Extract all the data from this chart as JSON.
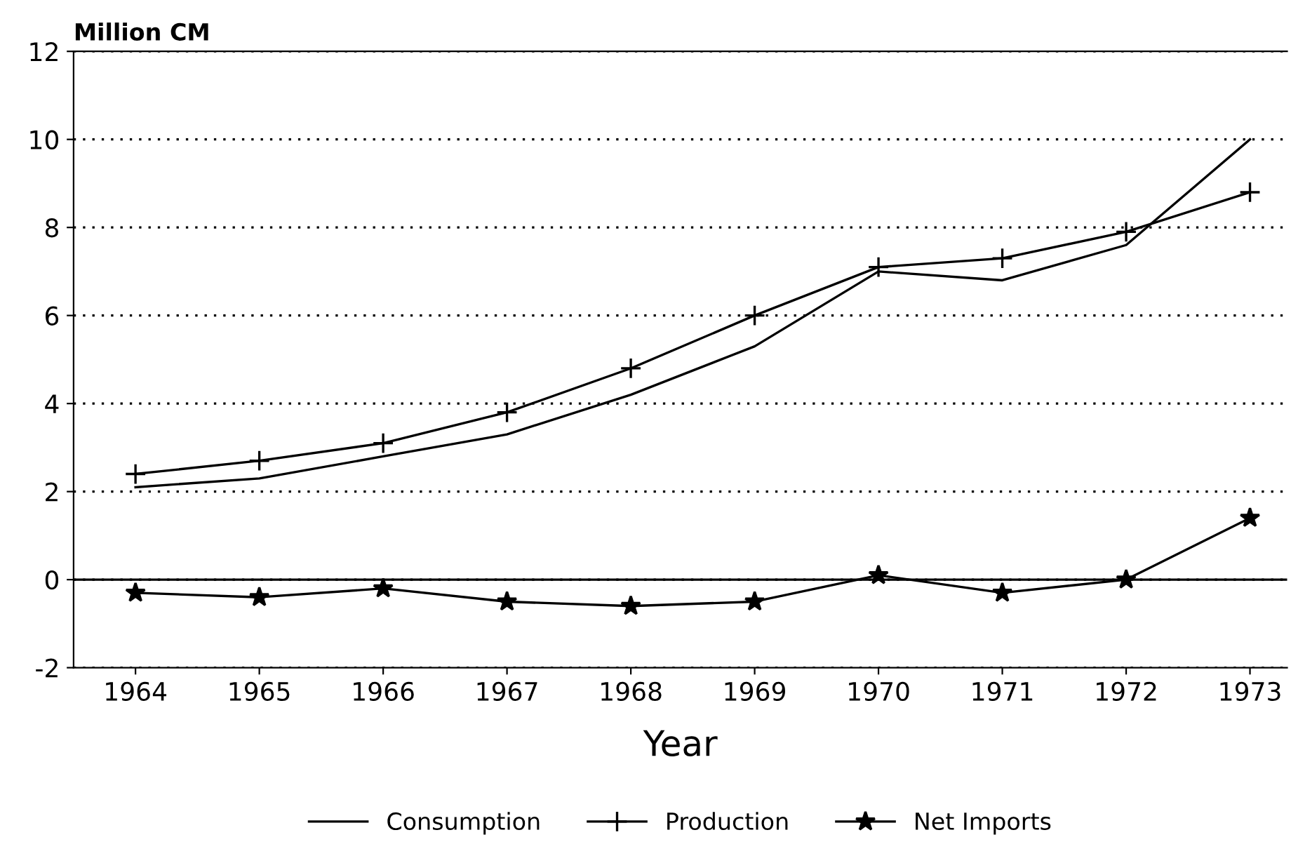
{
  "chart_data": {
    "type": "line",
    "xlabel": "Year",
    "ylabel": "Million CM",
    "x": [
      1964,
      1965,
      1966,
      1967,
      1968,
      1969,
      1970,
      1971,
      1972,
      1973
    ],
    "series": [
      {
        "name": "Consumption",
        "color": "#000000",
        "marker": "none",
        "values": [
          2.1,
          2.3,
          2.8,
          3.3,
          4.2,
          5.3,
          7.0,
          6.8,
          7.6,
          10.0
        ]
      },
      {
        "name": "Production",
        "color": "#000000",
        "marker": "cross",
        "values": [
          2.4,
          2.7,
          3.1,
          3.8,
          4.8,
          6.0,
          7.1,
          7.3,
          7.9,
          8.8
        ]
      },
      {
        "name": "Net Imports",
        "color": "#000000",
        "marker": "star",
        "values": [
          -0.3,
          -0.4,
          -0.2,
          -0.5,
          -0.6,
          -0.5,
          0.1,
          -0.3,
          0.0,
          1.4
        ]
      }
    ],
    "xlim": [
      1963.5,
      1973.3
    ],
    "xticks": [
      1964,
      1965,
      1966,
      1967,
      1968,
      1969,
      1970,
      1971,
      1972,
      1973
    ],
    "ylim": [
      -2,
      12
    ],
    "yticks": [
      -2,
      0,
      2,
      4,
      6,
      8,
      10,
      12
    ],
    "ref_lines": [
      {
        "axis": "y",
        "value": 0
      }
    ],
    "grid": "y",
    "legend": "bottom"
  }
}
